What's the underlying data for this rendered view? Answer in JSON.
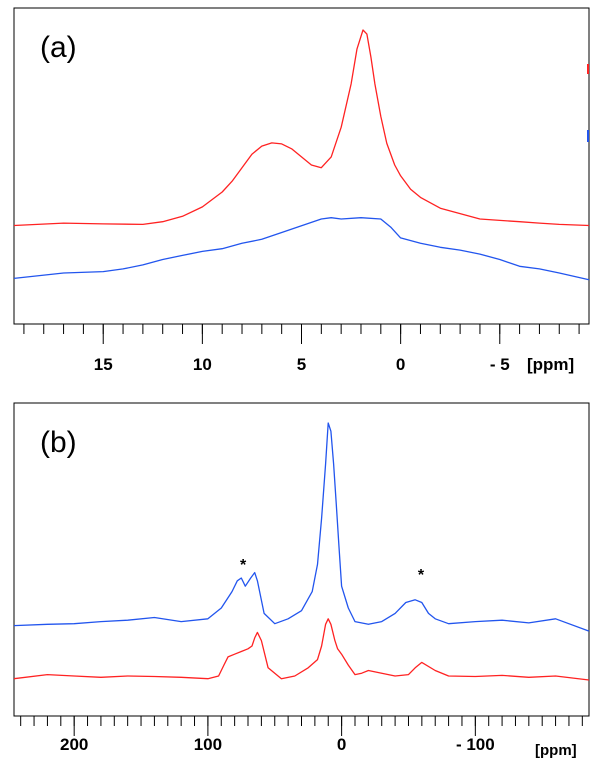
{
  "chart_data": [
    {
      "type": "line",
      "panel_label": "(a)",
      "xlabel": "[ppm]",
      "x_reversed": true,
      "xlim": [
        19.5,
        -9.5
      ],
      "ylim": [
        0,
        1
      ],
      "ticks": [
        {
          "label": "15",
          "value": 15
        },
        {
          "label": "10",
          "value": 10
        },
        {
          "label": "5",
          "value": 5
        },
        {
          "label": "0",
          "value": 0
        },
        {
          "label": "- 5",
          "value": -5
        }
      ],
      "minor_step": 1,
      "colors": {
        "red": "#ff2222",
        "blue": "#2255ee"
      },
      "series": [
        {
          "name": "red trace",
          "color": "#ff2222",
          "x": [
            19.5,
            17,
            15,
            13,
            12,
            11,
            10,
            9,
            8.5,
            8,
            7.5,
            7,
            6.5,
            6,
            5.5,
            5,
            4.5,
            4,
            3.5,
            3,
            2.5,
            2.2,
            1.9,
            1.7,
            1.5,
            1.3,
            1.0,
            0.7,
            0.3,
            0,
            -0.5,
            -1,
            -2,
            -3,
            -4,
            -5,
            -6,
            -7,
            -8,
            -9.5
          ],
          "y": [
            0.276,
            0.285,
            0.282,
            0.28,
            0.29,
            0.31,
            0.345,
            0.4,
            0.44,
            0.49,
            0.54,
            0.57,
            0.582,
            0.578,
            0.56,
            0.53,
            0.5,
            0.49,
            0.53,
            0.64,
            0.8,
            0.93,
            1.0,
            0.985,
            0.9,
            0.8,
            0.68,
            0.58,
            0.5,
            0.46,
            0.41,
            0.38,
            0.34,
            0.32,
            0.3,
            0.295,
            0.29,
            0.285,
            0.28,
            0.276
          ]
        },
        {
          "name": "blue trace",
          "color": "#2255ee",
          "x": [
            19.5,
            17,
            15,
            14,
            13,
            12,
            11,
            10,
            9,
            8,
            7,
            6,
            5,
            4,
            3.5,
            3,
            2,
            1,
            0.5,
            0,
            -1,
            -2,
            -3,
            -4,
            -5,
            -6,
            -7,
            -8,
            -9.5
          ],
          "y": [
            0.08,
            0.1,
            0.105,
            0.115,
            0.13,
            0.15,
            0.165,
            0.18,
            0.19,
            0.21,
            0.225,
            0.25,
            0.275,
            0.3,
            0.305,
            0.3,
            0.305,
            0.3,
            0.27,
            0.23,
            0.21,
            0.195,
            0.185,
            0.17,
            0.15,
            0.125,
            0.115,
            0.1,
            0.075
          ]
        }
      ]
    },
    {
      "type": "line",
      "panel_label": "(b)",
      "xlabel": "[ppm]",
      "x_reversed": true,
      "xlim": [
        245,
        -185
      ],
      "ylim": [
        0,
        1
      ],
      "ticks": [
        {
          "label": "200",
          "value": 200
        },
        {
          "label": "100",
          "value": 100
        },
        {
          "label": "0",
          "value": 0
        },
        {
          "label": "- 100",
          "value": -100
        }
      ],
      "minor_step": 10,
      "annotations": [
        {
          "text": "*",
          "x": 73
        },
        {
          "text": "*",
          "x": -60
        }
      ],
      "series": [
        {
          "name": "blue trace",
          "color": "#2255ee",
          "x": [
            245,
            220,
            200,
            180,
            160,
            140,
            120,
            100,
            90,
            82,
            78,
            75,
            72,
            68,
            65,
            63,
            58,
            50,
            40,
            30,
            22,
            18,
            15,
            12,
            10,
            8,
            6,
            4,
            2,
            0,
            -5,
            -10,
            -20,
            -30,
            -40,
            -48,
            -55,
            -60,
            -65,
            -70,
            -80,
            -100,
            -120,
            -140,
            -160,
            -185
          ],
          "y": [
            0.255,
            0.26,
            0.262,
            0.27,
            0.275,
            0.285,
            0.27,
            0.28,
            0.32,
            0.38,
            0.42,
            0.43,
            0.4,
            0.43,
            0.45,
            0.42,
            0.3,
            0.262,
            0.28,
            0.31,
            0.38,
            0.48,
            0.65,
            0.85,
            1.0,
            0.97,
            0.85,
            0.7,
            0.55,
            0.4,
            0.32,
            0.27,
            0.26,
            0.27,
            0.3,
            0.34,
            0.35,
            0.34,
            0.3,
            0.28,
            0.262,
            0.27,
            0.275,
            0.265,
            0.28,
            0.235
          ]
        },
        {
          "name": "red trace",
          "color": "#ff2222",
          "x": [
            245,
            220,
            200,
            180,
            160,
            140,
            120,
            100,
            92,
            88,
            85,
            80,
            75,
            70,
            67,
            65,
            63,
            60,
            55,
            45,
            35,
            25,
            18,
            15,
            12,
            10,
            8,
            5,
            3,
            0,
            -5,
            -10,
            -15,
            -20,
            -30,
            -40,
            -50,
            -55,
            -60,
            -70,
            -80,
            -100,
            -120,
            -140,
            -160,
            -185
          ],
          "y": [
            0.06,
            0.075,
            0.07,
            0.065,
            0.07,
            0.068,
            0.065,
            0.06,
            0.07,
            0.11,
            0.14,
            0.15,
            0.16,
            0.17,
            0.18,
            0.21,
            0.23,
            0.2,
            0.1,
            0.06,
            0.07,
            0.1,
            0.13,
            0.18,
            0.26,
            0.28,
            0.26,
            0.2,
            0.17,
            0.15,
            0.11,
            0.075,
            0.08,
            0.09,
            0.08,
            0.07,
            0.075,
            0.1,
            0.12,
            0.09,
            0.07,
            0.068,
            0.072,
            0.065,
            0.07,
            0.055
          ]
        }
      ]
    }
  ]
}
